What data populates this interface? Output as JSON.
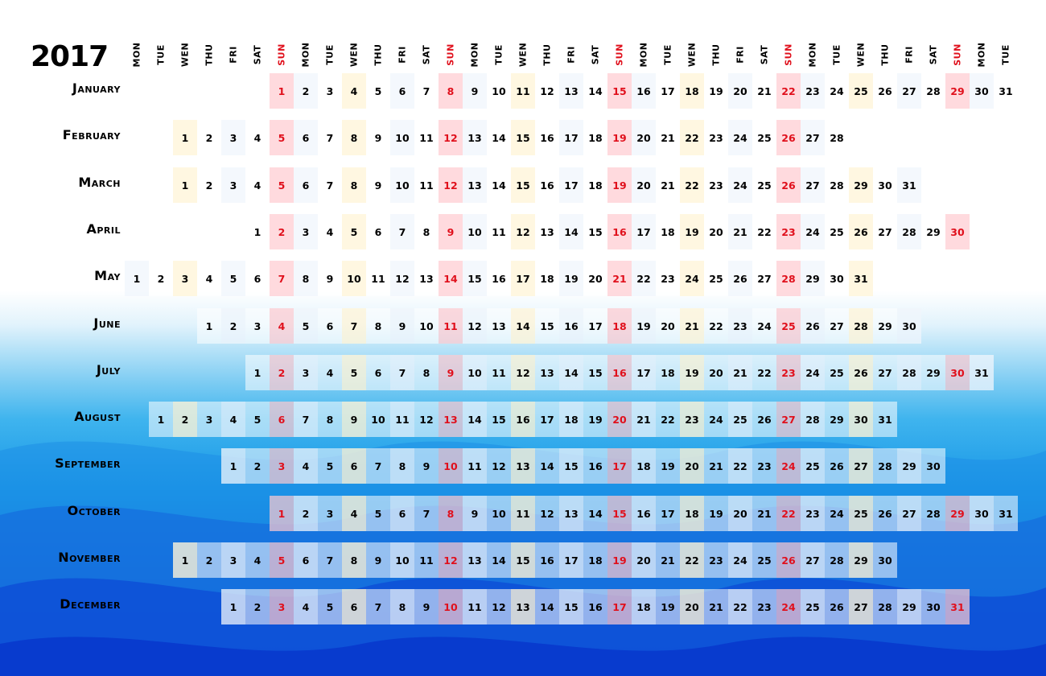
{
  "title": "2017",
  "weekdays": [
    "MON",
    "TUE",
    "WEN",
    "THU",
    "FRI",
    "SAT",
    "SUN",
    "MON",
    "TUE",
    "WEN",
    "THU",
    "FRI",
    "SAT",
    "SUN",
    "MON",
    "TUE",
    "WEN",
    "THU",
    "FRI",
    "SAT",
    "SUN",
    "MON",
    "TUE",
    "WEN",
    "THU",
    "FRI",
    "SAT",
    "SUN",
    "MON",
    "TUE",
    "WEN",
    "THU",
    "FRI",
    "SAT",
    "SUN",
    "MON",
    "TUE"
  ],
  "months": [
    {
      "name": "January",
      "start": 6,
      "days": 31
    },
    {
      "name": "February",
      "start": 2,
      "days": 28
    },
    {
      "name": "March",
      "start": 2,
      "days": 31
    },
    {
      "name": "April",
      "start": 5,
      "days": 30
    },
    {
      "name": "May",
      "start": 0,
      "days": 31
    },
    {
      "name": "June",
      "start": 3,
      "days": 30
    },
    {
      "name": "July",
      "start": 5,
      "days": 31
    },
    {
      "name": "August",
      "start": 1,
      "days": 31
    },
    {
      "name": "September",
      "start": 4,
      "days": 30
    },
    {
      "name": "October",
      "start": 6,
      "days": 31
    },
    {
      "name": "November",
      "start": 2,
      "days": 30
    },
    {
      "name": "December",
      "start": 4,
      "days": 31
    }
  ],
  "colors": {
    "sunday": "#e0101c",
    "text": "#000000"
  }
}
